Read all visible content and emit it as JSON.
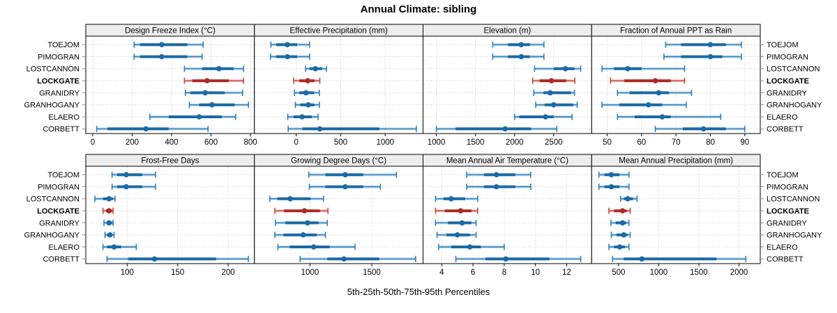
{
  "chart_data": {
    "type": "dotplot",
    "title": "Annual Climate: sibling",
    "caption": "5th-25th-50th-75th-95th Percentiles",
    "percentiles": [
      5,
      25,
      50,
      75,
      95
    ],
    "grid": "dotted",
    "legend": "none",
    "stations": [
      "TOEJOM",
      "PIMOGRAN",
      "LOSTCANNON",
      "LOCKGATE",
      "GRANIDRY",
      "GRANHOGANY",
      "ELAERO",
      "CORBETT"
    ],
    "highlight_station": "LOCKGATE",
    "colors": {
      "primary": "#2d7fbc",
      "primary_dark": "#1a6aa5",
      "highlight": "#c6473e",
      "highlight_dark": "#ab2c23",
      "grid": "#c3c3c3",
      "strip_bg": "#ededed",
      "panel_border": "#000000"
    },
    "layout_rows": 2,
    "layout_cols": 4,
    "panels": [
      {
        "title": "Design Freeze Index (°C)",
        "xlim": [
          -35,
          820
        ],
        "ticks": [
          0,
          200,
          400,
          600,
          800
        ],
        "values": {
          "TOEJOM": [
            210,
            240,
            350,
            480,
            560
          ],
          "PIMOGRAN": [
            210,
            240,
            350,
            480,
            555
          ],
          "LOSTCANNON": [
            465,
            555,
            640,
            715,
            765
          ],
          "LOCKGATE": [
            465,
            505,
            580,
            690,
            765
          ],
          "GRANIDRY": [
            470,
            495,
            570,
            670,
            760
          ],
          "GRANHOGANY": [
            490,
            540,
            605,
            720,
            790
          ],
          "ELAERO": [
            290,
            385,
            540,
            655,
            725
          ],
          "CORBETT": [
            20,
            75,
            270,
            385,
            585
          ]
        }
      },
      {
        "title": "Effective Precipitation (mm)",
        "xlim": [
          -470,
          1425
        ],
        "ticks": [
          0,
          500,
          1000
        ],
        "values": {
          "TOEJOM": [
            -285,
            -225,
            -100,
            10,
            150
          ],
          "PIMOGRAN": [
            -290,
            -225,
            -100,
            10,
            150
          ],
          "LOSTCANNON": [
            105,
            150,
            215,
            290,
            340
          ],
          "LOCKGATE": [
            -30,
            35,
            130,
            205,
            265
          ],
          "GRANIDRY": [
            -20,
            35,
            110,
            200,
            260
          ],
          "GRANHOGANY": [
            -10,
            45,
            135,
            205,
            260
          ],
          "ELAERO": [
            -95,
            -30,
            65,
            175,
            245
          ],
          "CORBETT": [
            -90,
            70,
            265,
            935,
            1350
          ]
        }
      },
      {
        "title": "Elevation (m)",
        "xlim": [
          830,
          2985
        ],
        "ticks": [
          1000,
          1500,
          2000,
          2500
        ],
        "values": {
          "TOEJOM": [
            1720,
            1915,
            2085,
            2195,
            2375
          ],
          "PIMOGRAN": [
            1720,
            1915,
            2085,
            2195,
            2375
          ],
          "LOSTCANNON": [
            2255,
            2500,
            2650,
            2765,
            2845
          ],
          "LOCKGATE": [
            2230,
            2320,
            2470,
            2660,
            2770
          ],
          "GRANIDRY": [
            2245,
            2370,
            2455,
            2720,
            2765
          ],
          "GRANHOGANY": [
            2270,
            2385,
            2500,
            2750,
            2800
          ],
          "ELAERO": [
            2000,
            2060,
            2395,
            2500,
            2735
          ],
          "CORBETT": [
            1000,
            1245,
            1880,
            2210,
            2540
          ]
        }
      },
      {
        "title": "Fraction of Annual PPT as Rain",
        "xlim": [
          45.5,
          94.5
        ],
        "ticks": [
          50,
          60,
          70,
          80,
          90
        ],
        "values": {
          "TOEJOM": [
            67,
            71.5,
            80,
            84.5,
            89
          ],
          "PIMOGRAN": [
            66.5,
            71.5,
            80,
            83.5,
            89
          ],
          "LOSTCANNON": [
            48.5,
            52,
            56,
            60,
            72.5
          ],
          "LOCKGATE": [
            51,
            55,
            64,
            68.5,
            72.5
          ],
          "GRANIDRY": [
            53,
            56.5,
            65,
            68,
            74.5
          ],
          "GRANHOGANY": [
            48.5,
            53.5,
            62,
            66,
            73
          ],
          "ELAERO": [
            53,
            58,
            66,
            68.5,
            83
          ],
          "CORBETT": [
            64,
            72,
            78,
            84.5,
            90
          ]
        }
      },
      {
        "title": "Frost-Free Days",
        "xlim": [
          59,
          226
        ],
        "ticks": [
          100,
          150,
          200
        ],
        "values": {
          "TOEJOM": [
            85,
            90,
            99,
            115,
            128
          ],
          "PIMOGRAN": [
            85,
            90,
            99,
            115,
            128
          ],
          "LOSTCANNON": [
            68,
            76,
            82,
            86,
            88
          ],
          "LOCKGATE": [
            76,
            79,
            82,
            85,
            86
          ],
          "GRANIDRY": [
            77,
            80,
            82,
            85,
            86
          ],
          "GRANHOGANY": [
            78,
            80,
            83,
            85,
            87
          ],
          "ELAERO": [
            76,
            80,
            87,
            94,
            109
          ],
          "CORBETT": [
            80,
            101,
            127,
            188,
            220
          ]
        }
      },
      {
        "title": "Growing Degree Days (°C)",
        "xlim": [
          550,
          1915
        ],
        "ticks": [
          1000,
          1500
        ],
        "values": {
          "TOEJOM": [
            990,
            1125,
            1285,
            1430,
            1700
          ],
          "PIMOGRAN": [
            995,
            1125,
            1285,
            1430,
            1570
          ],
          "LOSTCANNON": [
            675,
            735,
            840,
            1005,
            1110
          ],
          "LOCKGATE": [
            715,
            790,
            955,
            1080,
            1145
          ],
          "GRANIDRY": [
            720,
            800,
            980,
            1070,
            1140
          ],
          "GRANHOGANY": [
            715,
            785,
            945,
            1055,
            1125
          ],
          "ELAERO": [
            740,
            835,
            1030,
            1160,
            1365
          ],
          "CORBETT": [
            920,
            1140,
            1275,
            1560,
            1855
          ]
        }
      },
      {
        "title": "Mean Annual Air Temperature (°C)",
        "xlim": [
          2.8,
          13.6
        ],
        "ticks": [
          4,
          6,
          8,
          10,
          12
        ],
        "values": {
          "TOEJOM": [
            5.6,
            6.7,
            7.5,
            8.7,
            9.7
          ],
          "PIMOGRAN": [
            5.6,
            6.7,
            7.5,
            8.7,
            9.7
          ],
          "LOSTCANNON": [
            3.6,
            4.1,
            4.6,
            5.5,
            6.3
          ],
          "LOCKGATE": [
            3.6,
            4.2,
            5.2,
            5.9,
            6.3
          ],
          "GRANIDRY": [
            3.6,
            4.4,
            5.3,
            5.9,
            6.2
          ],
          "GRANHOGANY": [
            3.7,
            4.3,
            5.0,
            5.8,
            6.2
          ],
          "ELAERO": [
            3.8,
            4.6,
            5.8,
            6.5,
            8.0
          ],
          "CORBETT": [
            4.9,
            6.8,
            8.1,
            10.9,
            12.9
          ]
        }
      },
      {
        "title": "Mean Annual Precipitation (mm)",
        "xlim": [
          165,
          2265
        ],
        "ticks": [
          500,
          1000,
          1500,
          2000
        ],
        "values": {
          "TOEJOM": [
            255,
            325,
            410,
            510,
            630
          ],
          "PIMOGRAN": [
            255,
            325,
            410,
            510,
            630
          ],
          "LOSTCANNON": [
            525,
            565,
            615,
            680,
            730
          ],
          "LOCKGATE": [
            380,
            445,
            550,
            600,
            645
          ],
          "GRANIDRY": [
            405,
            465,
            550,
            595,
            630
          ],
          "GRANHOGANY": [
            410,
            475,
            565,
            610,
            645
          ],
          "ELAERO": [
            380,
            445,
            515,
            580,
            630
          ],
          "CORBETT": [
            425,
            565,
            790,
            1720,
            2085
          ]
        }
      }
    ]
  }
}
